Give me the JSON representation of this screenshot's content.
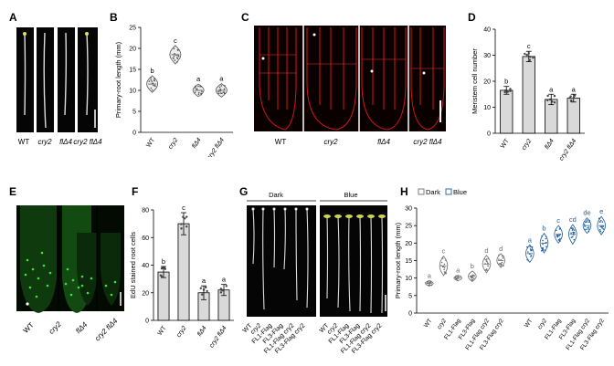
{
  "panels": {
    "A": {
      "label": "A",
      "genotypes": [
        "WT",
        "cry2",
        "flΔ4",
        "cry2 flΔ4"
      ]
    },
    "B": {
      "label": "B",
      "ylabel": "Primary-root length (mm)",
      "yticks": [
        "0",
        "5",
        "10",
        "15",
        "20",
        "25"
      ],
      "categories": [
        "WT",
        "cry2",
        "flΔ4",
        "cry2 flΔ4"
      ],
      "letters": [
        "b",
        "c",
        "a",
        "a"
      ]
    },
    "C": {
      "label": "C",
      "genotypes": [
        "WT",
        "cry2",
        "flΔ4",
        "cry2 flΔ4"
      ]
    },
    "D": {
      "label": "D",
      "ylabel": "Meristem cell number",
      "yticks": [
        "0",
        "10",
        "20",
        "30",
        "40"
      ],
      "categories": [
        "WT",
        "cry2",
        "flΔ4",
        "cry2 flΔ4"
      ],
      "letters": [
        "b",
        "c",
        "a",
        "a"
      ]
    },
    "E": {
      "label": "E",
      "genotypes": [
        "WT",
        "cry2",
        "flΔ4",
        "cry2 flΔ4"
      ]
    },
    "F": {
      "label": "F",
      "ylabel": "EdU stained root cells",
      "yticks": [
        "0",
        "20",
        "40",
        "60",
        "80"
      ],
      "categories": [
        "WT",
        "cry2",
        "flΔ4",
        "cry2 flΔ4"
      ],
      "letters": [
        "b",
        "c",
        "a",
        "a"
      ]
    },
    "G": {
      "label": "G",
      "dark_label": "Dark",
      "blue_label": "Blue",
      "genotypes": [
        "WT",
        "cry2",
        "FL1-Flag",
        "FL3-Flag",
        "FL1-Flag cry2",
        "FL3-Flag cry2"
      ]
    },
    "H": {
      "label": "H",
      "legend_dark": "Dark",
      "legend_blue": "Blue",
      "ylabel": "Primary-root length (mm)",
      "yticks": [
        "0",
        "5",
        "10",
        "15",
        "20",
        "25",
        "30"
      ],
      "categories": [
        "WT",
        "cry2",
        "FL1-Flag",
        "FL3-Flag",
        "FL1-Flag cry2",
        "FL3-Flag cry2"
      ],
      "dark_letters": [
        "a",
        "c",
        "a",
        "b",
        "d",
        "d"
      ],
      "blue_letters": [
        "a",
        "b",
        "c",
        "cd",
        "de",
        "e"
      ]
    }
  },
  "colors": {
    "dark_series": "#6f6f6f",
    "blue_series": "#1f5f9a",
    "fluor_red": "#e01818",
    "fluor_green": "#2fd22f"
  },
  "chart_data": [
    {
      "type": "violin",
      "panel": "B",
      "categories": [
        "WT",
        "cry2",
        "flΔ4",
        "cry2 flΔ4"
      ],
      "values": [
        11.5,
        18.5,
        10,
        10
      ],
      "ylim": [
        0,
        25
      ],
      "ylabel": "Primary-root length (mm)"
    },
    {
      "type": "bar",
      "panel": "D",
      "categories": [
        "WT",
        "cry2",
        "flΔ4",
        "cry2 flΔ4"
      ],
      "values": [
        16.5,
        29.5,
        13,
        13.5
      ],
      "errors": [
        1.5,
        2,
        2,
        1.5
      ],
      "ylim": [
        0,
        40
      ],
      "ylabel": "Meristem cell number"
    },
    {
      "type": "bar",
      "panel": "F",
      "categories": [
        "WT",
        "cry2",
        "flΔ4",
        "cry2 flΔ4"
      ],
      "values": [
        35,
        70,
        20,
        22
      ],
      "errors": [
        4,
        8,
        5,
        4
      ],
      "ylim": [
        0,
        80
      ],
      "ylabel": "EdU stained root cells"
    },
    {
      "type": "violin",
      "panel": "H",
      "categories": [
        "WT",
        "cry2",
        "FL1-Flag",
        "FL3-Flag",
        "FL1-Flag cry2",
        "FL3-Flag cry2"
      ],
      "ylim": [
        0,
        30
      ],
      "ylabel": "Primary-root length (mm)",
      "series": [
        {
          "name": "Dark",
          "values": [
            8.5,
            13.5,
            10,
            10.5,
            14,
            15
          ]
        },
        {
          "name": "Blue",
          "values": [
            17,
            20,
            22.5,
            22.5,
            25,
            25
          ]
        }
      ]
    }
  ]
}
